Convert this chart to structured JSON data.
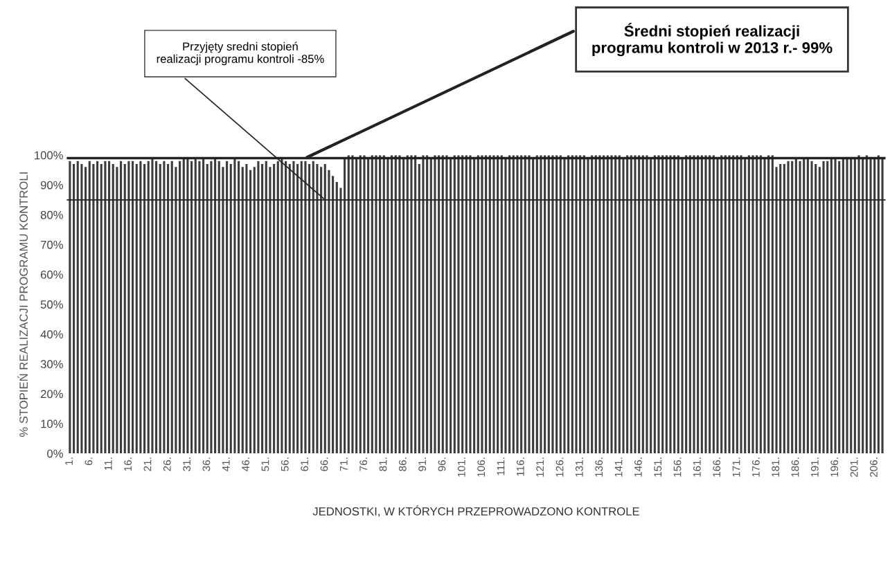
{
  "chart_data": {
    "type": "bar",
    "xlabel": "JEDNOSTKI, W KTÓRYCH PRZEPROWADZONO KONTROLE",
    "ylabel": "% STOPIEŃ REALIZACJI PROGRAMU KONTROLI",
    "categories": [
      "1.",
      null,
      null,
      null,
      null,
      "6.",
      null,
      null,
      null,
      null,
      "11.",
      null,
      null,
      null,
      null,
      "16.",
      null,
      null,
      null,
      null,
      "21.",
      null,
      null,
      null,
      null,
      "26.",
      null,
      null,
      null,
      null,
      "31.",
      null,
      null,
      null,
      null,
      "36.",
      null,
      null,
      null,
      null,
      "41.",
      null,
      null,
      null,
      null,
      "46.",
      null,
      null,
      null,
      null,
      "51.",
      null,
      null,
      null,
      null,
      "56.",
      null,
      null,
      null,
      null,
      "61.",
      null,
      null,
      null,
      null,
      "66.",
      null,
      null,
      null,
      null,
      "71.",
      null,
      null,
      null,
      null,
      "76.",
      null,
      null,
      null,
      null,
      "81.",
      null,
      null,
      null,
      null,
      "86.",
      null,
      null,
      null,
      null,
      "91.",
      null,
      null,
      null,
      null,
      "96.",
      null,
      null,
      null,
      null,
      "101.",
      null,
      null,
      null,
      null,
      "106.",
      null,
      null,
      null,
      null,
      "111.",
      null,
      null,
      null,
      null,
      "116.",
      null,
      null,
      null,
      null,
      "121.",
      null,
      null,
      null,
      null,
      "126.",
      null,
      null,
      null,
      null,
      "131.",
      null,
      null,
      null,
      null,
      "136.",
      null,
      null,
      null,
      null,
      "141.",
      null,
      null,
      null,
      null,
      "146.",
      null,
      null,
      null,
      null,
      "151.",
      null,
      null,
      null,
      null,
      "156.",
      null,
      null,
      null,
      null,
      "161.",
      null,
      null,
      null,
      null,
      "166.",
      null,
      null,
      null,
      null,
      "171.",
      null,
      null,
      null,
      null,
      "176.",
      null,
      null,
      null,
      null,
      "181.",
      null,
      null,
      null,
      null,
      "186.",
      null,
      null,
      null,
      null,
      "191.",
      null,
      null,
      null,
      null,
      "196.",
      null,
      null,
      null,
      null,
      "201.",
      null,
      null,
      null,
      null,
      "206.",
      null,
      null
    ],
    "series": [
      {
        "color": "#3c3c3c",
        "values": [
          98,
          97,
          98,
          97,
          96,
          98,
          97,
          98,
          97,
          98,
          98,
          97,
          96,
          98,
          97,
          98,
          98,
          97,
          98,
          97,
          98,
          99,
          98,
          97,
          98,
          97,
          98,
          96,
          98,
          99,
          99,
          98,
          99,
          98,
          99,
          97,
          98,
          99,
          98,
          96,
          98,
          97,
          99,
          98,
          96,
          97,
          95,
          96,
          98,
          97,
          98,
          96,
          97,
          98,
          99,
          98,
          97,
          98,
          97,
          98,
          98,
          97,
          98,
          97,
          96,
          97,
          95,
          93,
          91,
          89,
          99,
          100,
          100,
          99,
          100,
          100,
          99,
          100,
          100,
          100,
          100,
          99,
          100,
          100,
          100,
          99,
          100,
          100,
          100,
          97,
          100,
          100,
          99,
          100,
          100,
          100,
          100,
          99,
          100,
          100,
          100,
          100,
          100,
          99,
          100,
          100,
          100,
          100,
          100,
          100,
          100,
          99,
          100,
          100,
          100,
          100,
          100,
          100,
          99,
          100,
          100,
          100,
          100,
          100,
          100,
          100,
          99,
          100,
          100,
          100,
          100,
          100,
          99,
          100,
          100,
          100,
          100,
          100,
          100,
          100,
          100,
          99,
          100,
          100,
          100,
          100,
          100,
          100,
          99,
          100,
          100,
          100,
          100,
          100,
          100,
          100,
          99,
          100,
          100,
          100,
          100,
          100,
          100,
          100,
          100,
          99,
          100,
          100,
          100,
          100,
          100,
          100,
          99,
          100,
          100,
          100,
          100,
          99,
          100,
          100,
          96,
          97,
          97,
          98,
          98,
          99,
          98,
          99,
          99,
          98,
          97,
          96,
          98,
          98,
          99,
          99,
          98,
          99,
          99,
          99,
          99,
          100,
          99,
          100,
          99,
          99,
          100,
          99
        ]
      }
    ],
    "ylim": [
      0,
      100
    ],
    "yticks": [
      {
        "value": 0,
        "label": "0%"
      },
      {
        "value": 10,
        "label": "10%"
      },
      {
        "value": 20,
        "label": "20%"
      },
      {
        "value": 30,
        "label": "30%"
      },
      {
        "value": 40,
        "label": "40%"
      },
      {
        "value": 50,
        "label": "50%"
      },
      {
        "value": 60,
        "label": "60%"
      },
      {
        "value": 70,
        "label": "70%"
      },
      {
        "value": 80,
        "label": "80%"
      },
      {
        "value": 90,
        "label": "90%"
      },
      {
        "value": 100,
        "label": "100%"
      }
    ],
    "ref_lines": [
      {
        "axis": "y",
        "value": 85,
        "color": "#222222"
      },
      {
        "axis": "y",
        "value": 99,
        "color": "#222222"
      }
    ],
    "annotations": [
      {
        "text": "Przyjęty sredni stopień realizacji programu kontroli -85%",
        "x": "66.",
        "y": 85
      },
      {
        "text": "Średni stopień realizacji programu kontroli w 2013 r.- 99%",
        "x": "61.",
        "y": 99
      }
    ],
    "grid": false
  }
}
